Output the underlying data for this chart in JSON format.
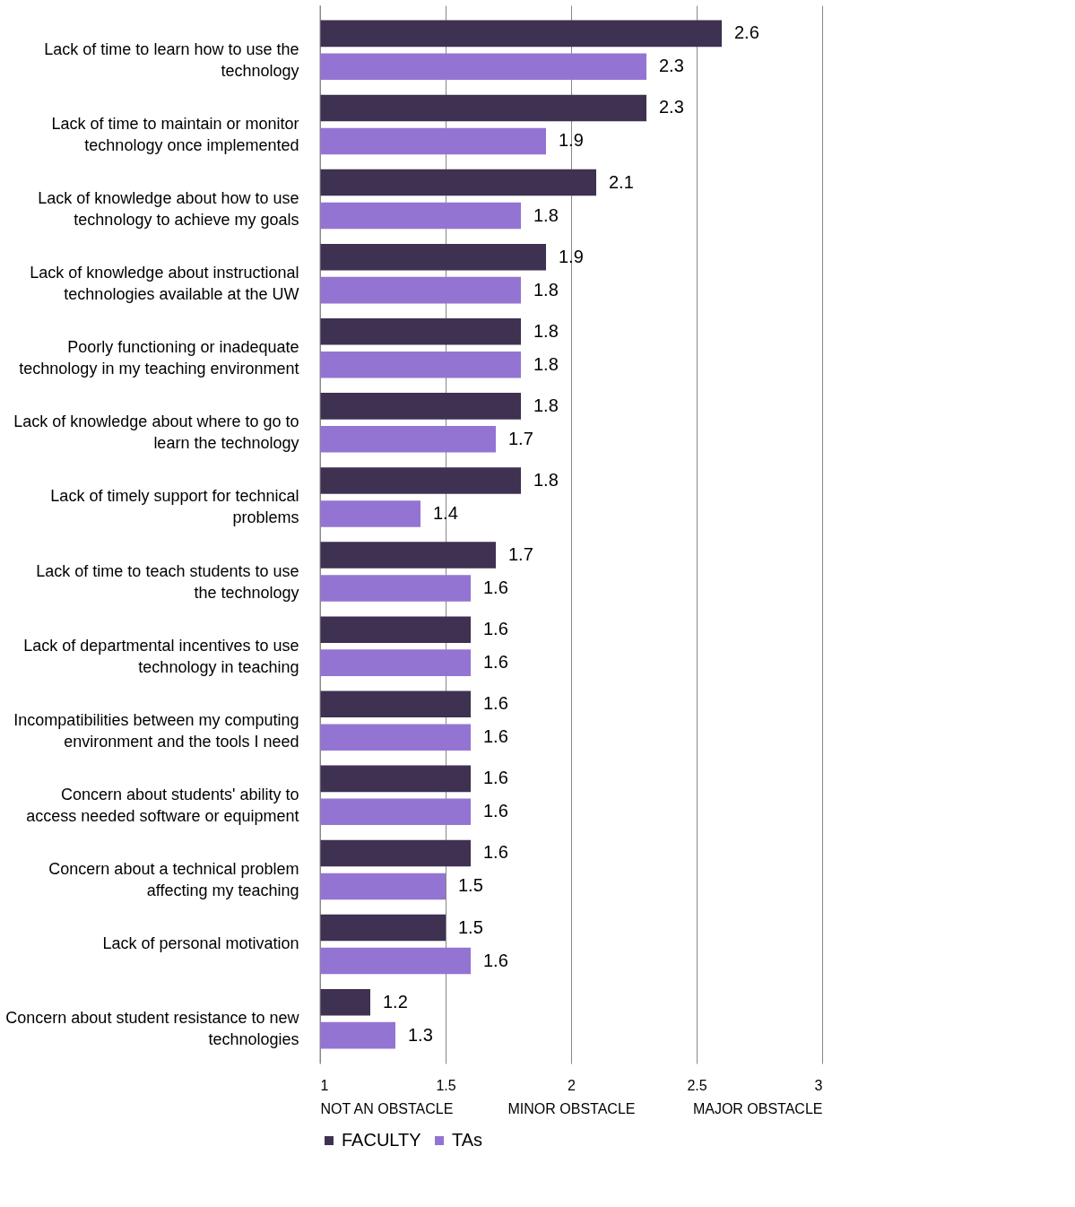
{
  "chart_data": {
    "type": "bar",
    "orientation": "horizontal",
    "categories": [
      "Lack of time to learn how to use the technology",
      "Lack of time to maintain or monitor technology once implemented",
      "Lack  of knowledge about how to use technology to achieve my goals",
      "Lack  of knowledge about instructional technologies available at the UW",
      "Poorly functioning or inadequate technology in my teaching environment",
      "Lack of knowledge about where to go to learn the technology",
      "Lack of timely support for technical problems",
      "Lack of time to teach students to use the technology",
      "Lack of departmental incentives to use technology in teaching",
      "Incompatibilities between my computing environment and the tools I need",
      "Concern about students' ability to access needed software or equipment",
      "Concern about a technical problem affecting my teaching",
      "Lack of personal motivation",
      "Concern about student resistance to new technologies"
    ],
    "series": [
      {
        "name": "FACULTY",
        "color": "#3f3151",
        "values": [
          2.6,
          2.3,
          2.1,
          1.9,
          1.8,
          1.8,
          1.8,
          1.7,
          1.6,
          1.6,
          1.6,
          1.6,
          1.5,
          1.2
        ]
      },
      {
        "name": "TAs",
        "color": "#9474d2",
        "values": [
          2.3,
          1.9,
          1.8,
          1.8,
          1.8,
          1.7,
          1.4,
          1.6,
          1.6,
          1.6,
          1.6,
          1.5,
          1.6,
          1.3
        ]
      }
    ],
    "xlim": [
      1,
      3
    ],
    "xticks": [
      {
        "value": 1,
        "label": "1\nNOT AN OBSTACLE"
      },
      1.5,
      {
        "value": 2,
        "label": "2\nMINOR OBSTACLE"
      },
      2.5,
      {
        "value": 3,
        "label": "3\nMAJOR OBSTACLE"
      }
    ],
    "data_labels": true,
    "grid": "x",
    "legend": "bottom"
  }
}
